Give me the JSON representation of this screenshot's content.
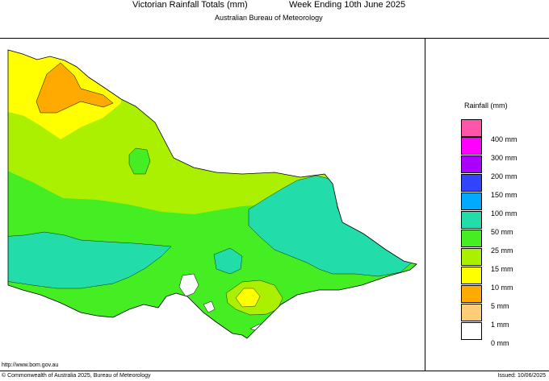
{
  "header": {
    "title": "Victorian Rainfall Totals (mm)",
    "period": "Week Ending 10th June 2025",
    "subtitle": "Australian Bureau of Meteorology"
  },
  "legend": {
    "title": "Rainfall (mm)",
    "items": [
      {
        "label": "400 mm",
        "color": "#ff55aa"
      },
      {
        "label": "300 mm",
        "color": "#ff00ff"
      },
      {
        "label": "200 mm",
        "color": "#aa00ff"
      },
      {
        "label": "150 mm",
        "color": "#3344ff"
      },
      {
        "label": "100 mm",
        "color": "#00aaff"
      },
      {
        "label": "50 mm",
        "color": "#22ddaa"
      },
      {
        "label": "25 mm",
        "color": "#44ee22"
      },
      {
        "label": "15 mm",
        "color": "#aaf000"
      },
      {
        "label": "10 mm",
        "color": "#ffff00"
      },
      {
        "label": "5 mm",
        "color": "#ffaa00"
      },
      {
        "label": "1 mm",
        "color": "#ffcc77"
      },
      {
        "label": "0 mm",
        "color": "#ffffff"
      }
    ]
  },
  "footer": {
    "url": "http://www.bom.gov.au",
    "copyright": "© Commonwealth of Australia 2025, Bureau of Meteorology",
    "issued": "Issued: 10/06/2025"
  }
}
